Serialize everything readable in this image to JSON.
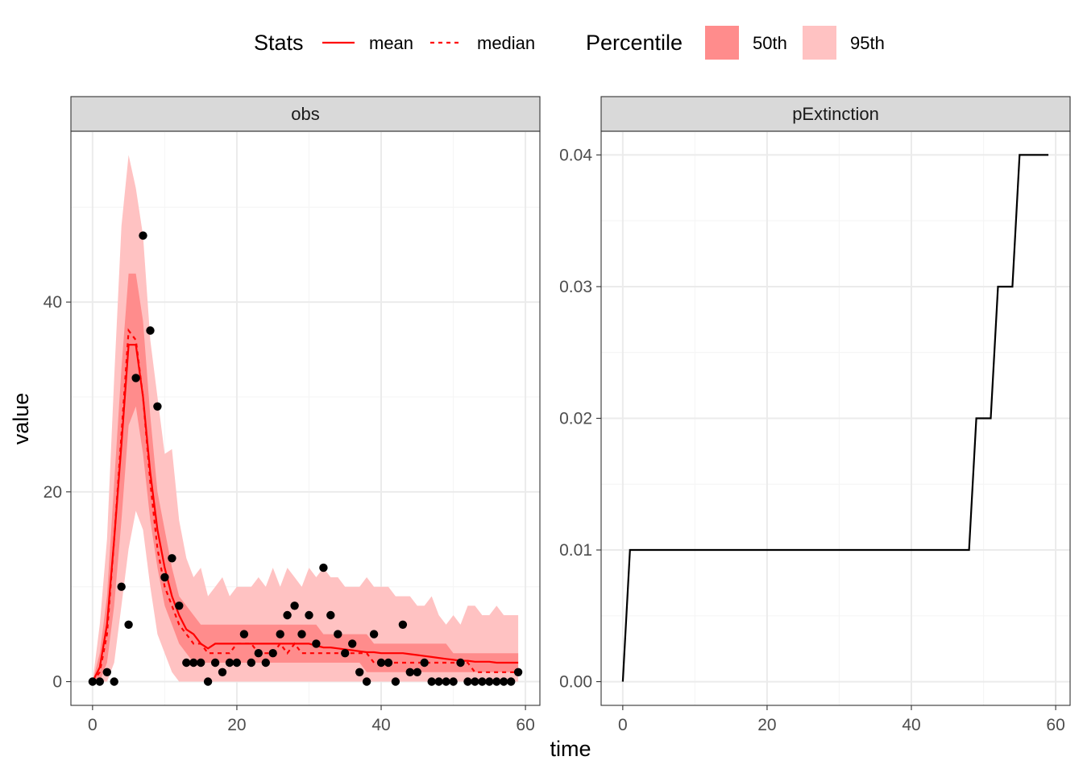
{
  "legend": {
    "stats": {
      "title": "Stats",
      "items": [
        "mean",
        "median"
      ]
    },
    "percentile": {
      "title": "Percentile",
      "items": [
        "50th",
        "95th"
      ]
    }
  },
  "colors": {
    "line": "#ff0000",
    "band50": "#ff8c8c",
    "band95": "#ffc2c2",
    "points": "#000000",
    "strip": "#d9d9d9",
    "grid_major": "#ebebeb",
    "grid_minor": "#f5f5f5"
  },
  "chart_data": [
    {
      "type": "line",
      "panel": "obs",
      "xlabel": "time",
      "ylabel": "value",
      "xlim": [
        -3,
        62
      ],
      "ylim": [
        -2.5,
        58
      ],
      "xticks": [
        0,
        20,
        40,
        60
      ],
      "yticks": [
        0,
        20,
        40
      ],
      "time": [
        0,
        1,
        2,
        3,
        4,
        5,
        6,
        7,
        8,
        9,
        10,
        11,
        12,
        13,
        14,
        15,
        16,
        17,
        18,
        19,
        20,
        21,
        22,
        23,
        24,
        25,
        26,
        27,
        28,
        29,
        30,
        31,
        32,
        33,
        34,
        35,
        36,
        37,
        38,
        39,
        40,
        41,
        42,
        43,
        44,
        45,
        46,
        47,
        48,
        49,
        50,
        51,
        52,
        53,
        54,
        55,
        56,
        57,
        58,
        59
      ],
      "observed": [
        0,
        0,
        1,
        0,
        10,
        6,
        32,
        47,
        37,
        29,
        11,
        13,
        8,
        2,
        2,
        2,
        0,
        2,
        1,
        2,
        2,
        5,
        2,
        3,
        2,
        3,
        5,
        7,
        8,
        5,
        7,
        4,
        12,
        7,
        5,
        3,
        4,
        1,
        0,
        5,
        2,
        2,
        0,
        6,
        1,
        1,
        2,
        0,
        0,
        0,
        0,
        2,
        0,
        0,
        0,
        0,
        0,
        0,
        0,
        1
      ],
      "series": [
        {
          "name": "mean",
          "values": [
            0,
            1.5,
            6,
            15,
            25,
            35.5,
            35.5,
            30,
            22,
            16,
            12,
            9,
            7,
            5.5,
            5,
            4,
            3.5,
            4,
            4,
            4,
            4,
            4,
            4,
            4,
            4,
            4,
            4,
            4,
            4,
            4,
            4,
            3.8,
            3.6,
            3.6,
            3.5,
            3.4,
            3.3,
            3.2,
            3.1,
            3.1,
            3,
            3,
            3,
            3,
            2.9,
            2.8,
            2.7,
            2.6,
            2.5,
            2.4,
            2.3,
            2.2,
            2.2,
            2.1,
            2.1,
            2.1,
            2,
            2,
            2,
            2
          ]
        },
        {
          "name": "median",
          "values": [
            0,
            1,
            5,
            15,
            26,
            37,
            36,
            30,
            21,
            14,
            10,
            8,
            6,
            5,
            4,
            4,
            3,
            3,
            3,
            3,
            4,
            4,
            4,
            3,
            3,
            3,
            4,
            3,
            4,
            3,
            3,
            3,
            3,
            3,
            3,
            3,
            3,
            3,
            3,
            2,
            2,
            2,
            2,
            2,
            2,
            2,
            2,
            2,
            2,
            2,
            2,
            2,
            2,
            1,
            1,
            1,
            1,
            1,
            1,
            1
          ]
        }
      ],
      "band50": {
        "lower": [
          0,
          0,
          2,
          8,
          17,
          27,
          29,
          24,
          17,
          12,
          8,
          6,
          4,
          3,
          2,
          2,
          2,
          2,
          2,
          2,
          2,
          2,
          2,
          2,
          2,
          2,
          2,
          2,
          2,
          2,
          2,
          2,
          2,
          2,
          2,
          2,
          2,
          2,
          1,
          1,
          1,
          1,
          1,
          1,
          1,
          1,
          1,
          1,
          1,
          1,
          1,
          1,
          1,
          1,
          1,
          1,
          1,
          1,
          1,
          1
        ],
        "upper": [
          0,
          3,
          9,
          21,
          33,
          43,
          43,
          38,
          28,
          20,
          16,
          12,
          9,
          8,
          7,
          6,
          6,
          6,
          6,
          6,
          6,
          6,
          6,
          6,
          6,
          6,
          6,
          6,
          6,
          6,
          6,
          6,
          5,
          5,
          5,
          5,
          5,
          5,
          5,
          4,
          4,
          4,
          4,
          4,
          4,
          4,
          4,
          4,
          4,
          4,
          3,
          3,
          3,
          3,
          3,
          3,
          3,
          3,
          3,
          3
        ]
      },
      "band95": {
        "lower": [
          0,
          0,
          0,
          2,
          8,
          14,
          18,
          16,
          10,
          5,
          3,
          1,
          0,
          0,
          0,
          0,
          0,
          0,
          0,
          0,
          0,
          0,
          0,
          0,
          0,
          0,
          0,
          0,
          0,
          0,
          0,
          0,
          0,
          0,
          0,
          0,
          0,
          0,
          0,
          0,
          0,
          0,
          0,
          0,
          0,
          0,
          0,
          0,
          0,
          0,
          0,
          0,
          0,
          0,
          0,
          0,
          0,
          0,
          0,
          0
        ],
        "upper": [
          0,
          6,
          15,
          32,
          48,
          55.5,
          52,
          47,
          36,
          30,
          24,
          24.5,
          17,
          13,
          11,
          12,
          9,
          10,
          11,
          9,
          10,
          10,
          10,
          11,
          10,
          12,
          10,
          12,
          11,
          10,
          12,
          11,
          12,
          11,
          11,
          10,
          10,
          10,
          11,
          10,
          10,
          10,
          9,
          9,
          9,
          8,
          8,
          9,
          7,
          6,
          7,
          6,
          8,
          8,
          7,
          7,
          8,
          7,
          7,
          7
        ]
      }
    },
    {
      "type": "line",
      "panel": "pExtinction",
      "xlim": [
        -3,
        62
      ],
      "ylim": [
        -0.0018,
        0.0418
      ],
      "xticks": [
        0,
        20,
        40,
        60
      ],
      "yticks": [
        0.0,
        0.01,
        0.02,
        0.03,
        0.04
      ],
      "ytick_labels": [
        "0.00",
        "0.01",
        "0.02",
        "0.03",
        "0.04"
      ],
      "time": [
        0,
        1,
        2,
        3,
        4,
        5,
        6,
        7,
        8,
        9,
        10,
        11,
        12,
        13,
        14,
        15,
        16,
        17,
        18,
        19,
        20,
        21,
        22,
        23,
        24,
        25,
        26,
        27,
        28,
        29,
        30,
        31,
        32,
        33,
        34,
        35,
        36,
        37,
        38,
        39,
        40,
        41,
        42,
        43,
        44,
        45,
        46,
        47,
        48,
        49,
        50,
        51,
        52,
        53,
        54,
        55,
        56,
        57,
        58,
        59
      ],
      "values": [
        0,
        0.01,
        0.01,
        0.01,
        0.01,
        0.01,
        0.01,
        0.01,
        0.01,
        0.01,
        0.01,
        0.01,
        0.01,
        0.01,
        0.01,
        0.01,
        0.01,
        0.01,
        0.01,
        0.01,
        0.01,
        0.01,
        0.01,
        0.01,
        0.01,
        0.01,
        0.01,
        0.01,
        0.01,
        0.01,
        0.01,
        0.01,
        0.01,
        0.01,
        0.01,
        0.01,
        0.01,
        0.01,
        0.01,
        0.01,
        0.01,
        0.01,
        0.01,
        0.01,
        0.01,
        0.01,
        0.01,
        0.01,
        0.01,
        0.02,
        0.02,
        0.02,
        0.03,
        0.03,
        0.03,
        0.04,
        0.04,
        0.04,
        0.04,
        0.04
      ]
    }
  ]
}
